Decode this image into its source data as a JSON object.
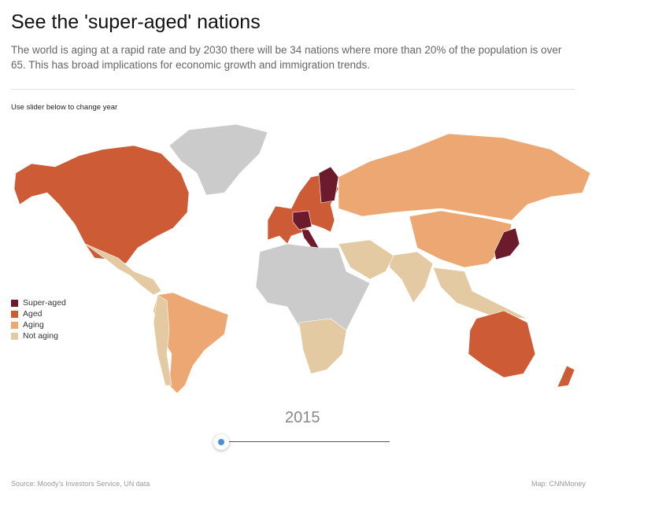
{
  "header": {
    "title": "See the 'super-aged' nations",
    "subtitle": "The world is aging at a rapid rate and by 2030 there will be 34 nations where more than 20% of the population is over 65. This has broad implications for economic growth and immigration trends."
  },
  "instruction": "Use slider below to change year",
  "legend": [
    {
      "label": "Super-aged",
      "color": "#6b1b2c"
    },
    {
      "label": "Aged",
      "color": "#cc5b36"
    },
    {
      "label": "Aging",
      "color": "#eca772"
    },
    {
      "label": "Not aging",
      "color": "#e3caa2"
    }
  ],
  "year": 2015,
  "footer": {
    "source": "Source: Moody's Investors Service, UN data",
    "credit": "Map: CNNMoney"
  }
}
